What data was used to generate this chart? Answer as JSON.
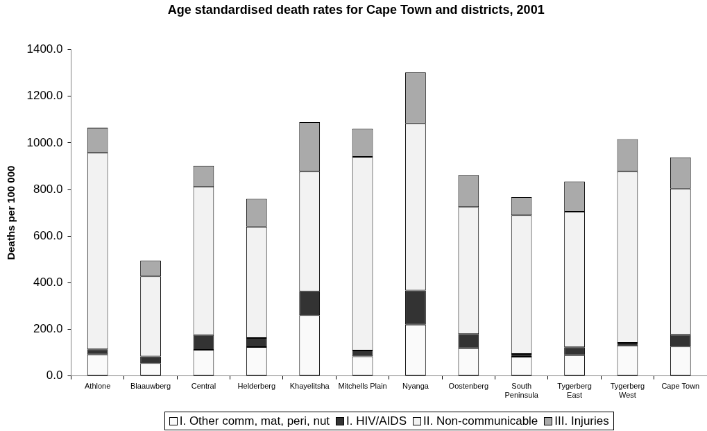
{
  "chart_data": {
    "type": "bar",
    "title": "Age standardised death rates for Cape Town and districts, 2001",
    "ylabel": "Deaths per 100 000",
    "categories": [
      "Athlone",
      "Blaauwberg",
      "Central",
      "Helderberg",
      "Khayelitsha",
      "Mitchells Plain",
      "Nyanga",
      "Oostenberg",
      "South Peninsula",
      "Tygerberg East",
      "Tygerberg West",
      "Cape Town"
    ],
    "series": [
      {
        "name": "I. Other comm, mat, peri, nut",
        "color": "#fafafa",
        "values": [
          92,
          55,
          112,
          124,
          260,
          84,
          220,
          119,
          82,
          89,
          129,
          126
        ]
      },
      {
        "name": "I. HIV/AIDS",
        "color": "#333333",
        "values": [
          22,
          29,
          64,
          39,
          103,
          25,
          147,
          61,
          12,
          34,
          13,
          51
        ]
      },
      {
        "name": "II. Non-communicable",
        "color": "#f2f2f2",
        "values": [
          843,
          343,
          635,
          477,
          514,
          831,
          717,
          545,
          595,
          582,
          735,
          627
        ]
      },
      {
        "name": "III. Injuries",
        "color": "#aaaaaa",
        "values": [
          108,
          68,
          91,
          120,
          212,
          121,
          219,
          137,
          78,
          129,
          139,
          134
        ]
      }
    ],
    "stacked": true,
    "ylim": [
      0,
      1400
    ],
    "yticks": [
      {
        "value": 0,
        "label": "0.0"
      },
      {
        "value": 200,
        "label": "200.0"
      },
      {
        "value": 400,
        "label": "400.0"
      },
      {
        "value": 600,
        "label": "600.0"
      },
      {
        "value": 800,
        "label": "800.0"
      },
      {
        "value": 1000,
        "label": "1000.0"
      },
      {
        "value": 1200,
        "label": "1200.0"
      },
      {
        "value": 1400,
        "label": "1400.0"
      }
    ],
    "grid": false,
    "legend": "bottom"
  }
}
